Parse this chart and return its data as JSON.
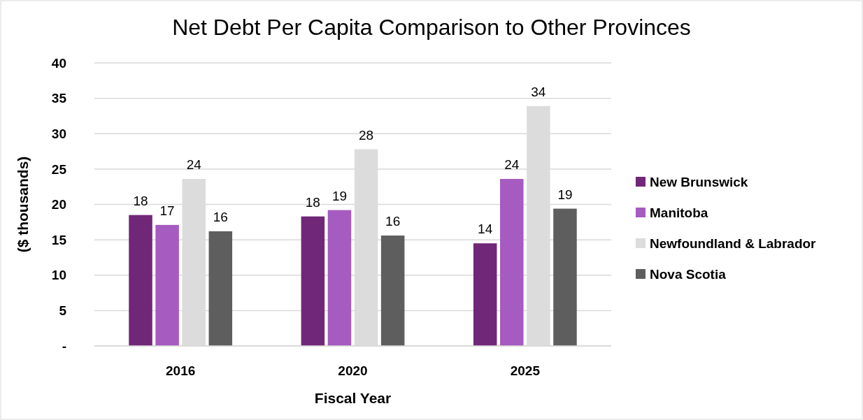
{
  "chart_data": {
    "type": "bar",
    "title": "Net Debt Per Capita Comparison to Other Provinces",
    "xlabel": "Fiscal Year",
    "ylabel": "($ thousands)",
    "categories": [
      "2016",
      "2020",
      "2025"
    ],
    "series": [
      {
        "name": "New Brunswick",
        "color": "#702777",
        "values": [
          18.5,
          18.3,
          14.5
        ],
        "value_labels": [
          "18",
          "18",
          "14"
        ]
      },
      {
        "name": "Manitoba",
        "color": "#a55bbf",
        "values": [
          17.1,
          19.2,
          23.6
        ],
        "value_labels": [
          "17",
          "19",
          "24"
        ]
      },
      {
        "name": "Newfoundland & Labrador",
        "color": "#dcdcdc",
        "values": [
          23.6,
          27.8,
          33.9
        ],
        "value_labels": [
          "24",
          "28",
          "34"
        ]
      },
      {
        "name": "Nova Scotia",
        "color": "#5e5e5e",
        "values": [
          16.2,
          15.6,
          19.4
        ],
        "value_labels": [
          "16",
          "16",
          "19"
        ]
      }
    ],
    "ylim": [
      0,
      40
    ],
    "yticks": [
      {
        "value": 0,
        "label": "-"
      },
      5,
      10,
      15,
      20,
      25,
      30,
      35,
      40
    ],
    "grid": "y",
    "legend": "right"
  }
}
